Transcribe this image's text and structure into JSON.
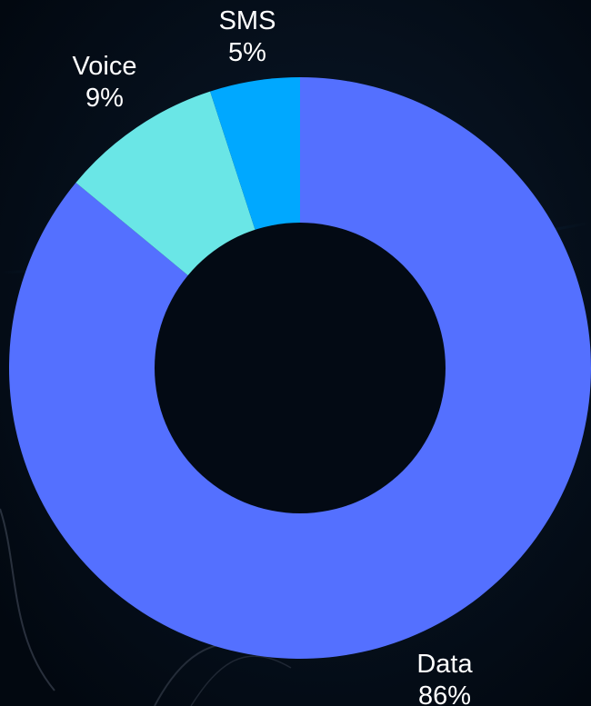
{
  "chart_data": {
    "type": "pie",
    "variant": "donut",
    "categories": [
      "Data",
      "SMS",
      "Voice"
    ],
    "values": [
      86,
      5,
      9
    ],
    "unit": "%",
    "colors": [
      "#5470ff",
      "#00a8ff",
      "#6ae6e6"
    ],
    "labels": [
      {
        "name": "Data",
        "value": "86%"
      },
      {
        "name": "SMS",
        "value": "5%"
      },
      {
        "name": "Voice",
        "value": "9%"
      }
    ],
    "legend": "none",
    "start": "top",
    "direction": "clockwise"
  }
}
